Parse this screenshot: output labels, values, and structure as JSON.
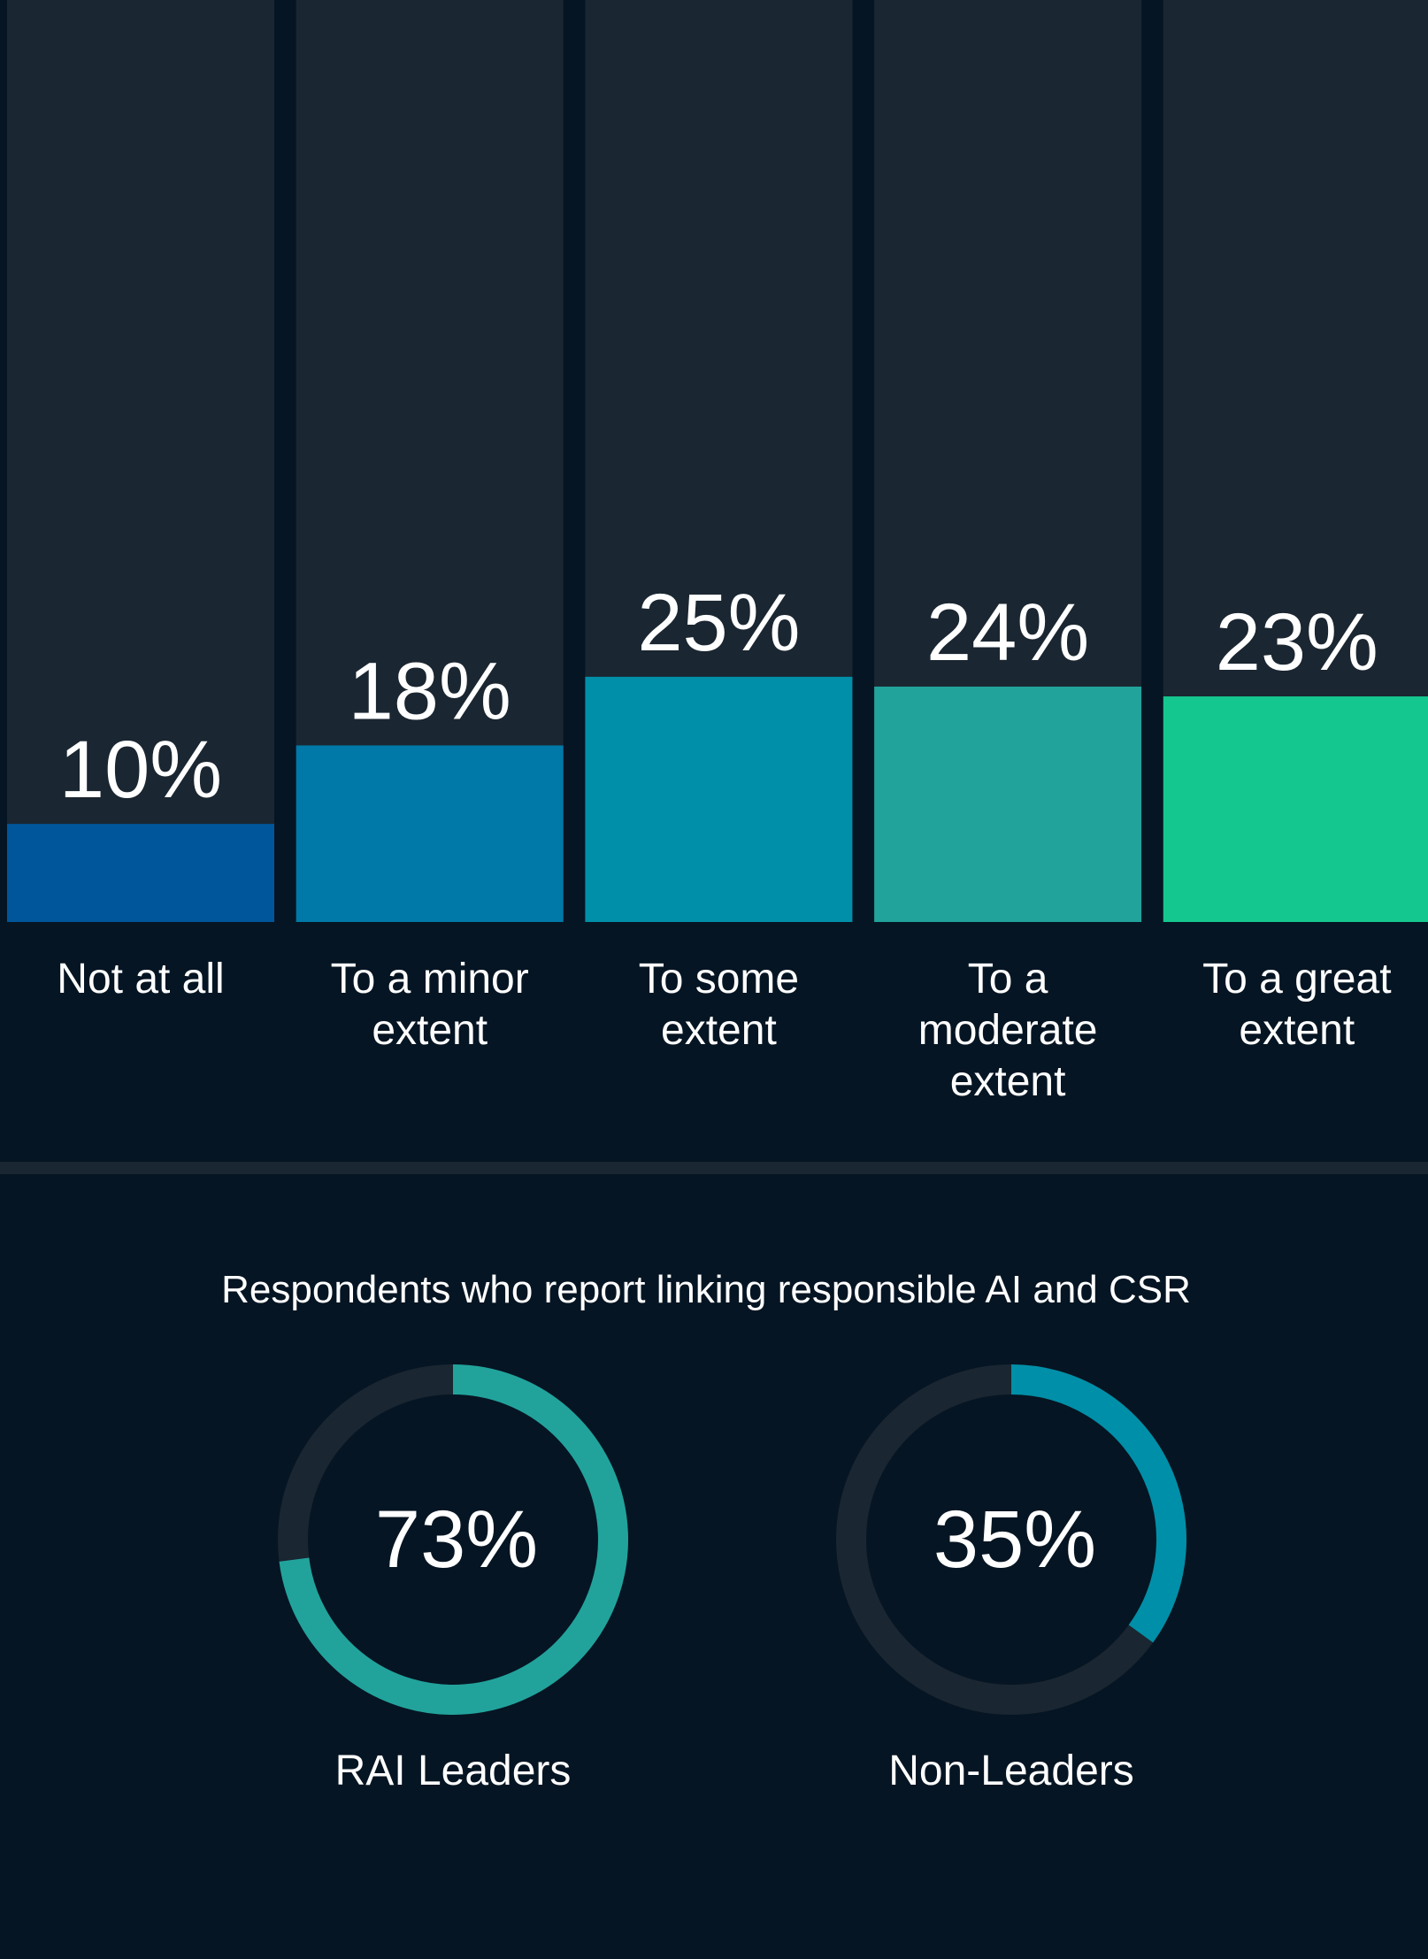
{
  "chart_data": [
    {
      "type": "bar",
      "categories": [
        "Not at all",
        "To a minor extent",
        "To some extent",
        "To a moderate extent",
        "To a great extent"
      ],
      "category_lines": [
        [
          "Not at all"
        ],
        [
          "To a minor",
          "extent"
        ],
        [
          "To some",
          "extent"
        ],
        [
          "To a",
          "moderate",
          "extent"
        ],
        [
          "To a great",
          "extent"
        ]
      ],
      "values": [
        10,
        18,
        25,
        24,
        23
      ],
      "value_labels": [
        "10%",
        "18%",
        "25%",
        "24%",
        "23%"
      ],
      "ylim": [
        0,
        94
      ],
      "colors": [
        "#00569a",
        "#0079a8",
        "#008fa8",
        "#21a39c",
        "#14c78f"
      ]
    },
    {
      "type": "pie",
      "title": "Respondents who report linking responsible AI and CSR",
      "slices": [
        {
          "name": "RAI Leaders",
          "value": 73,
          "label": "73%",
          "color": "#21a39c"
        },
        {
          "name": "Non-Leaders",
          "value": 35,
          "label": "35%",
          "color": "#008fa8"
        }
      ],
      "track_color": "#1a2631"
    }
  ]
}
